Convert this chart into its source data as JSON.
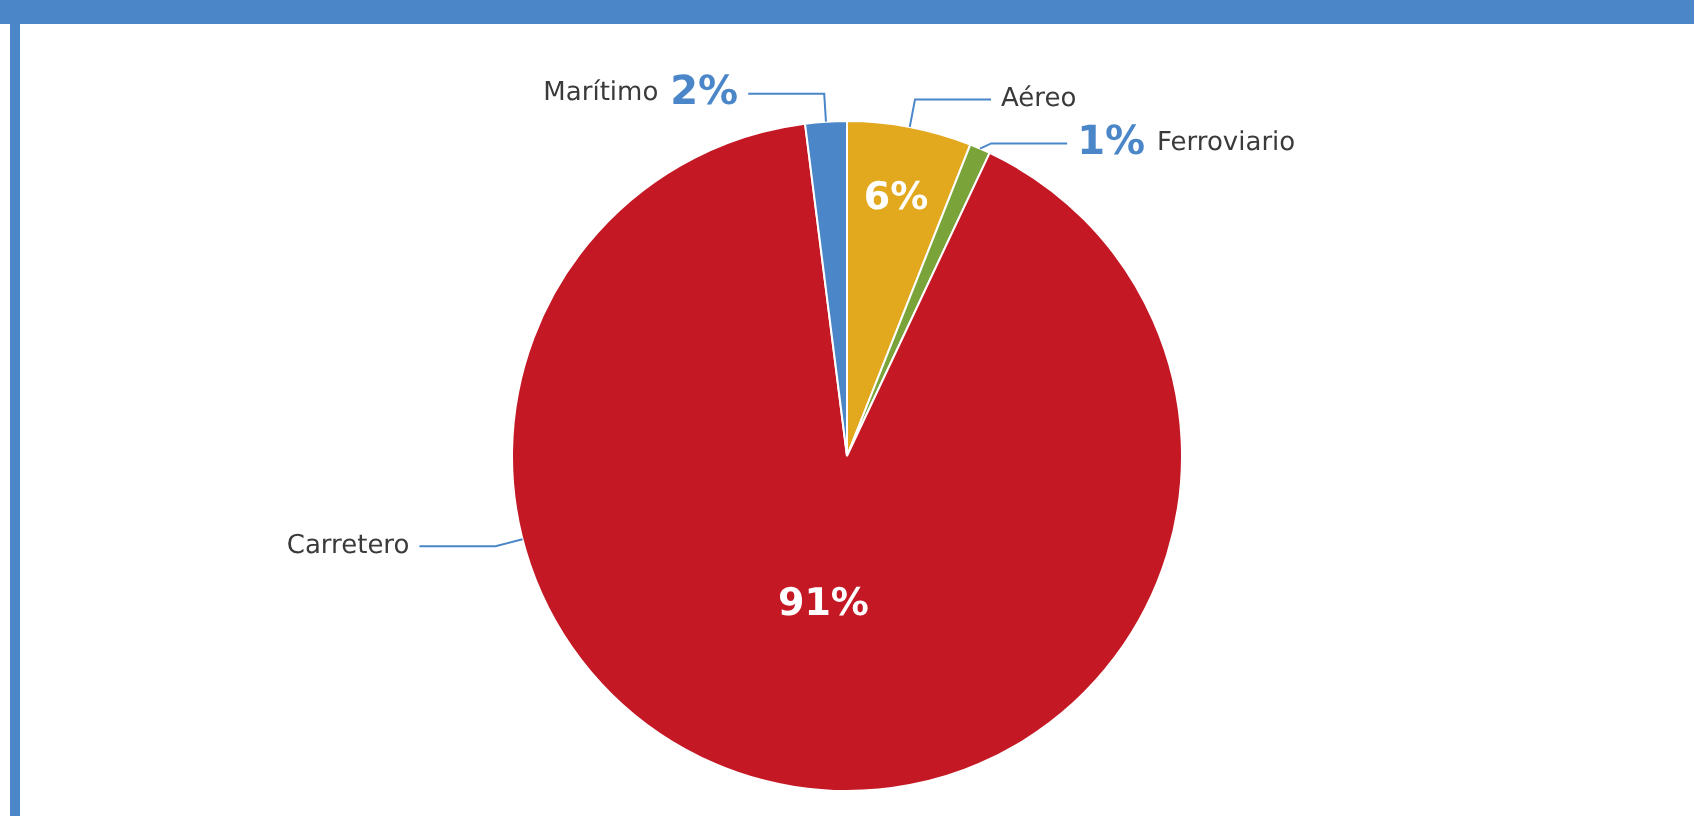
{
  "chart_data": {
    "type": "pie",
    "categories": [
      "Aéreo",
      "Ferroviario",
      "Carretero",
      "Marítimo"
    ],
    "values": [
      6,
      1,
      91,
      2
    ],
    "colors": [
      "#e2a81e",
      "#7aa43a",
      "#c41825",
      "#4a86c8"
    ],
    "value_labels": [
      "6%",
      "1%",
      "91%",
      "2%"
    ],
    "legend": false
  }
}
